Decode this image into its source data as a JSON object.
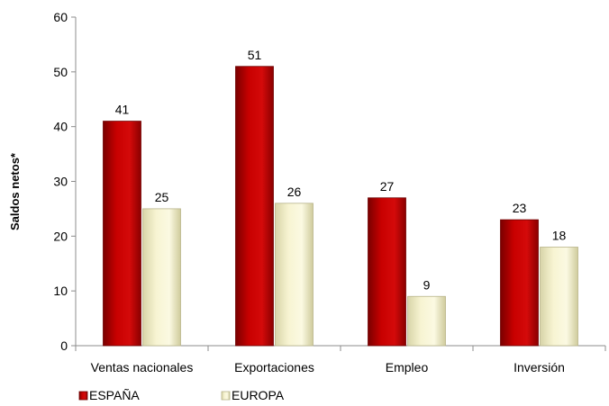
{
  "chart_data": {
    "type": "bar",
    "title": "",
    "xlabel": "",
    "ylabel": "Saldos netos*",
    "ylim": [
      0,
      60
    ],
    "yticks": [
      0,
      10,
      20,
      30,
      40,
      50,
      60
    ],
    "grid": false,
    "legend_position": "bottom-left",
    "categories": [
      "Ventas nacionales",
      "Exportaciones",
      "Empleo",
      "Inversión"
    ],
    "series": [
      {
        "name": "ESPAÑA",
        "values": [
          41,
          51,
          27,
          23
        ],
        "color": "#c00000"
      },
      {
        "name": "EUROPA",
        "values": [
          25,
          26,
          9,
          18
        ],
        "color": "#f6f3cf"
      }
    ]
  }
}
